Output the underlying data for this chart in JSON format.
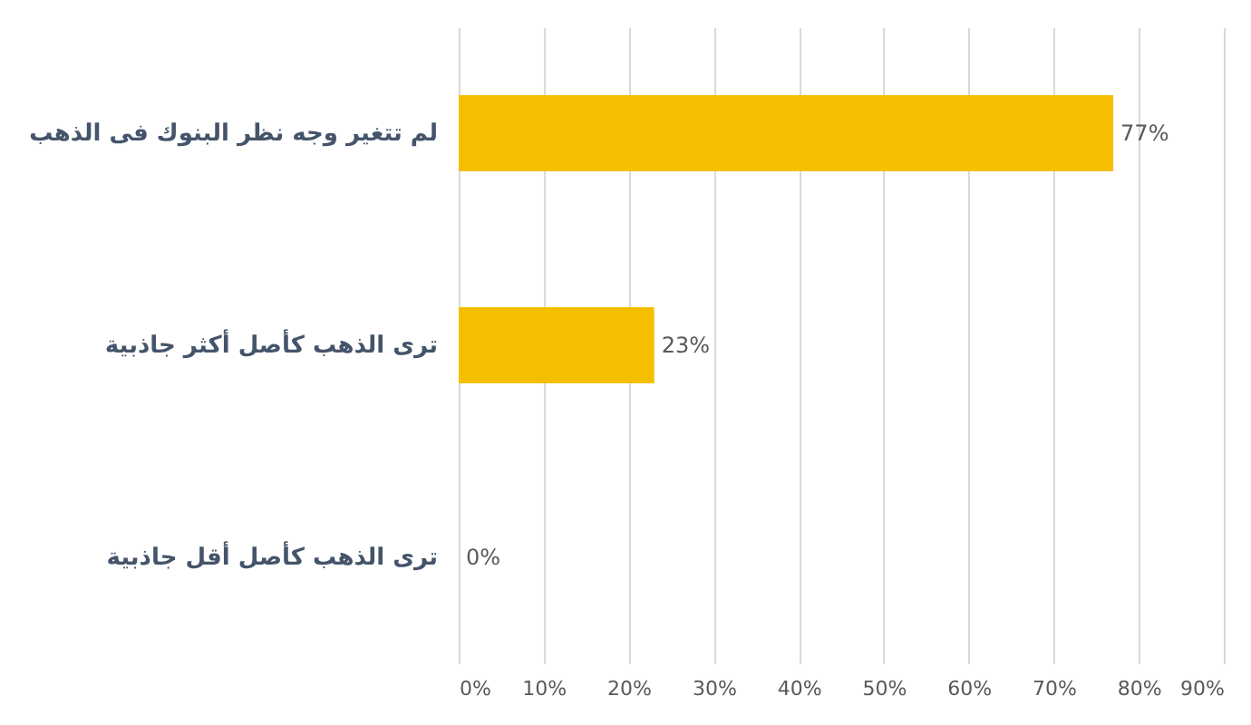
{
  "chart_data": {
    "type": "bar",
    "orientation": "horizontal",
    "categories": [
      "لم تتغير وجه نظر البنوك فى الذهب",
      "ترى الذهب كأصل أكثر جاذبية",
      "ترى الذهب كأصل أقل جاذبية"
    ],
    "values": [
      77,
      23,
      0
    ],
    "color": "#f5bf00",
    "data_labels": true,
    "value_labels": [
      "77%",
      "23%",
      "0%"
    ],
    "xlim": [
      0,
      90
    ],
    "xticks": [
      {
        "value": 0,
        "label": "0%"
      },
      {
        "value": 10,
        "label": "10%"
      },
      {
        "value": 20,
        "label": "20%"
      },
      {
        "value": 30,
        "label": "30%"
      },
      {
        "value": 40,
        "label": "40%"
      },
      {
        "value": 50,
        "label": "50%"
      },
      {
        "value": 60,
        "label": "60%"
      },
      {
        "value": 70,
        "label": "70%"
      },
      {
        "value": 80,
        "label": "80%"
      },
      {
        "value": 90,
        "label": "90%"
      }
    ],
    "grid": "x"
  }
}
